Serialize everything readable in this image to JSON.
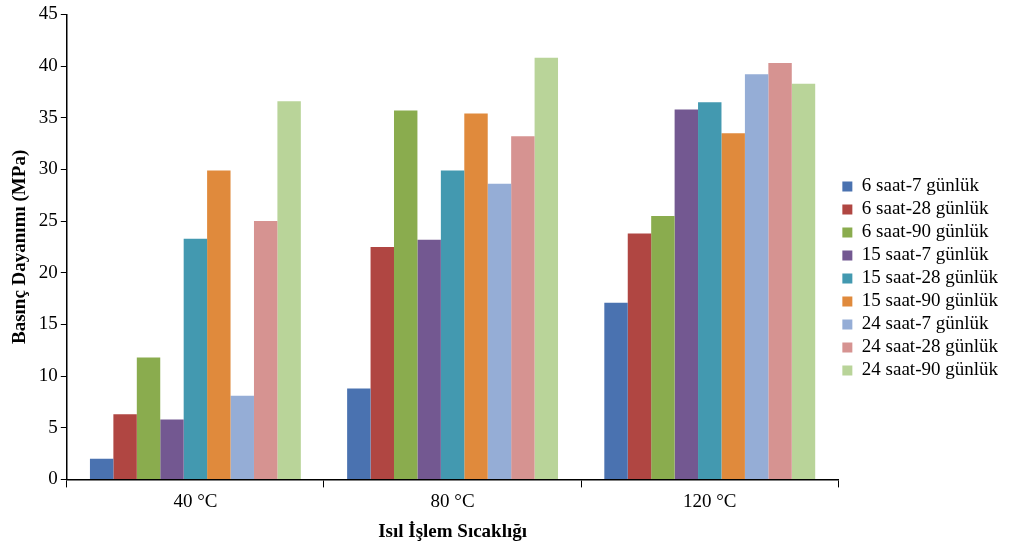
{
  "chart_data": {
    "type": "bar",
    "xlabel": "Isıl İşlem Sıcaklığı",
    "ylabel": "Basınç Dayanımı (MPa)",
    "categories": [
      "40 °C",
      "80 °C",
      "120 °C"
    ],
    "ylim": [
      0,
      45
    ],
    "yticks": [
      0,
      5,
      10,
      15,
      20,
      25,
      30,
      35,
      40,
      45
    ],
    "grid": false,
    "legend": "right",
    "series": [
      {
        "name": "6 saat-7 günlük",
        "color": "#4a72b0",
        "values": [
          2.0,
          8.8,
          17.1
        ]
      },
      {
        "name": "6 saat-28 günlük",
        "color": "#b04642",
        "values": [
          6.3,
          22.5,
          23.8
        ]
      },
      {
        "name": "6 saat-90 günlük",
        "color": "#8aac4e",
        "values": [
          11.8,
          35.7,
          25.5
        ]
      },
      {
        "name": "15 saat-7 günlük",
        "color": "#735891",
        "values": [
          5.8,
          23.2,
          35.8
        ]
      },
      {
        "name": "15 saat-28 günlük",
        "color": "#4399b0",
        "values": [
          23.3,
          29.9,
          36.5
        ]
      },
      {
        "name": "15 saat-90 günlük",
        "color": "#e08a3c",
        "values": [
          29.9,
          35.4,
          33.5
        ]
      },
      {
        "name": "24 saat-7 günlük",
        "color": "#95add6",
        "values": [
          8.1,
          28.6,
          39.2
        ]
      },
      {
        "name": "24 saat-28 günlük",
        "color": "#d69391",
        "values": [
          25.0,
          33.2,
          40.3
        ]
      },
      {
        "name": "24 saat-90 günlük",
        "color": "#b9d499",
        "values": [
          36.6,
          40.8,
          38.3
        ]
      }
    ]
  }
}
